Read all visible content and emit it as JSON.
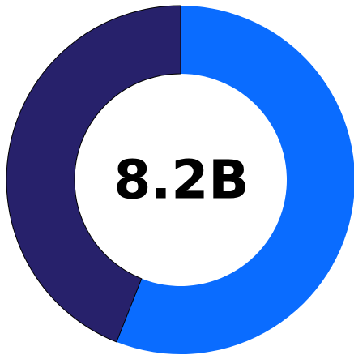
{
  "chart_data": {
    "type": "donut",
    "center_label": "8.2B",
    "values": [
      56,
      44
    ],
    "colors": [
      "#0a6cff",
      "#27216b"
    ]
  }
}
